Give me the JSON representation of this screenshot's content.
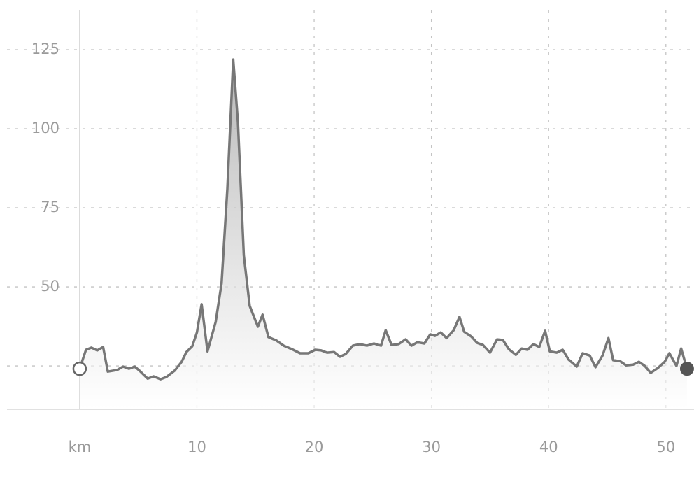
{
  "chart_data": {
    "type": "area",
    "xlim": [
      -6.2,
      52.4
    ],
    "ylim": [
      11.3,
      137.4
    ],
    "xticks": [
      {
        "value": 0,
        "label": "km"
      },
      10,
      20,
      30,
      40,
      50
    ],
    "yticks": [
      {
        "value": 25,
        "label": null
      },
      50,
      75,
      100,
      125
    ],
    "grid": true,
    "color": "#777777",
    "x": [
      0,
      0.54,
      1.0,
      1.5,
      2.0,
      2.4,
      3.2,
      3.7,
      4.2,
      4.7,
      5.1,
      5.8,
      6.3,
      6.9,
      7.4,
      8.1,
      8.7,
      9.1,
      9.6,
      10.0,
      10.4,
      10.9,
      11.6,
      12.1,
      12.6,
      13.1,
      13.5,
      14.0,
      14.5,
      15.2,
      15.6,
      16.1,
      16.8,
      17.4,
      18.1,
      18.8,
      19.5,
      20.1,
      20.6,
      21.1,
      21.7,
      22.2,
      22.7,
      23.3,
      23.9,
      24.5,
      25.1,
      25.7,
      26.1,
      26.6,
      27.2,
      27.8,
      28.3,
      28.8,
      29.4,
      29.9,
      30.3,
      30.8,
      31.3,
      31.9,
      32.4,
      32.8,
      33.4,
      33.9,
      34.4,
      35.0,
      35.6,
      36.1,
      36.6,
      37.2,
      37.7,
      38.2,
      38.7,
      39.2,
      39.7,
      40.1,
      40.7,
      41.2,
      41.7,
      42.4,
      42.9,
      43.5,
      44.0,
      44.6,
      45.1,
      45.5,
      46.1,
      46.6,
      47.2,
      47.7,
      48.2,
      48.7,
      49.3,
      49.9,
      50.3,
      50.9,
      51.3,
      51.8
    ],
    "values": [
      24.1,
      30.1,
      30.8,
      29.9,
      31,
      23.2,
      23.7,
      24.8,
      24.1,
      24.8,
      23.5,
      21,
      21.7,
      20.8,
      21.5,
      23.5,
      26.3,
      29.4,
      31.2,
      35.6,
      44.5,
      29.6,
      38.9,
      51.1,
      81,
      121.9,
      102,
      60,
      44,
      37.4,
      41.2,
      34.1,
      33,
      31.4,
      30.3,
      29,
      29,
      30.1,
      29.9,
      29.2,
      29.4,
      27.9,
      28.8,
      31.4,
      31.9,
      31.4,
      32.1,
      31.4,
      36.3,
      31.6,
      31.9,
      33.4,
      31.4,
      32.5,
      32.1,
      35,
      34.5,
      35.6,
      33.8,
      36.3,
      40.5,
      35.8,
      34.3,
      32.3,
      31.6,
      29.2,
      33.4,
      33.2,
      30.3,
      28.5,
      30.5,
      30.1,
      31.9,
      31,
      36.1,
      29.6,
      29.2,
      30.1,
      27,
      24.8,
      29,
      28.3,
      24.6,
      28.3,
      33.8,
      26.8,
      26.5,
      25.2,
      25.4,
      26.3,
      25,
      22.8,
      24.3,
      26.3,
      29,
      25,
      30.5,
      24.1
    ]
  }
}
